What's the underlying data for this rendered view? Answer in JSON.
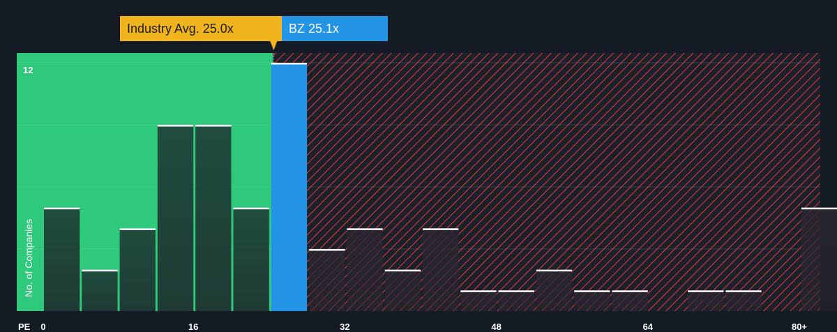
{
  "chart_data": {
    "type": "bar",
    "xlabel": "PE",
    "ylabel": "No. of Companies",
    "x_ticks": [
      "0",
      "16",
      "32",
      "48",
      "64",
      "80+"
    ],
    "x_tick_values": [
      0,
      16,
      32,
      48,
      64,
      80
    ],
    "ylim": [
      0,
      12
    ],
    "y_tick_labels": [
      "12"
    ],
    "bin_width": 4,
    "bins": [
      {
        "start": 0,
        "count": 5
      },
      {
        "start": 4,
        "count": 2
      },
      {
        "start": 8,
        "count": 4
      },
      {
        "start": 12,
        "count": 9
      },
      {
        "start": 16,
        "count": 9
      },
      {
        "start": 20,
        "count": 5
      },
      {
        "start": 24,
        "count": 12
      },
      {
        "start": 28,
        "count": 3
      },
      {
        "start": 32,
        "count": 4
      },
      {
        "start": 36,
        "count": 2
      },
      {
        "start": 40,
        "count": 4
      },
      {
        "start": 44,
        "count": 1
      },
      {
        "start": 48,
        "count": 1
      },
      {
        "start": 52,
        "count": 2
      },
      {
        "start": 56,
        "count": 1
      },
      {
        "start": 60,
        "count": 1
      },
      {
        "start": 64,
        "count": 0
      },
      {
        "start": 68,
        "count": 1
      },
      {
        "start": 72,
        "count": 1
      },
      {
        "start": 76,
        "count": 0
      },
      {
        "start": 80,
        "count": 5
      }
    ],
    "highlight_bin_start": 24,
    "industry_avg": 25.0,
    "company_value": 25.1,
    "industry_label": "Industry Avg. 25.0x",
    "company_label": "BZ 25.1x",
    "colors": {
      "background": "#151b24",
      "below_avg_zone": "#2ec97a",
      "above_avg_zone_stripe": "#d63a3f",
      "bar_fill": "#1f4b3d",
      "bar_cap": "#ffffff",
      "highlight_bar": "#2394e6",
      "industry_callout": "#f2b41c",
      "company_callout": "#2394e6"
    }
  }
}
